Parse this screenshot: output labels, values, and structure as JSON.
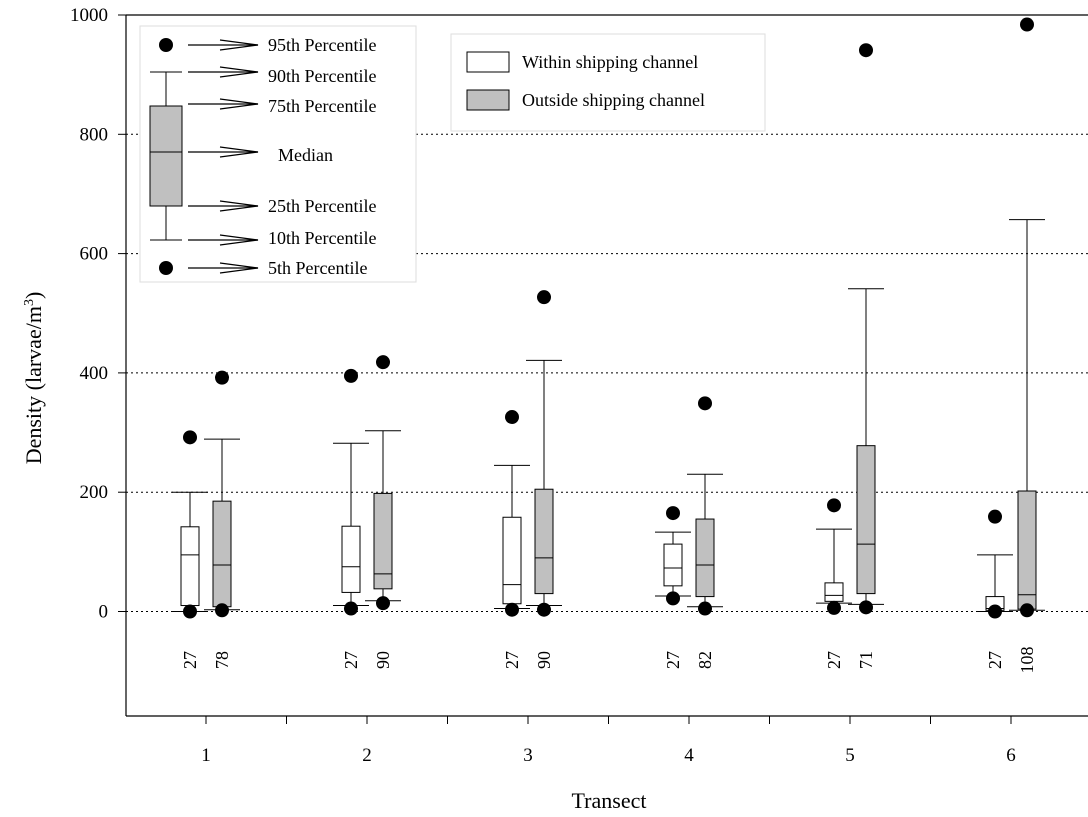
{
  "chart_data": {
    "type": "box",
    "xlabel": "Transect",
    "ylabel": "Density (larvae/m",
    "ylabel_sup": "3",
    "ylabel_end": ")",
    "ylim": [
      -185,
      1000
    ],
    "yticks": [
      0,
      200,
      400,
      600,
      800,
      1000
    ],
    "grid": "horizontal dotted at y ticks",
    "categories": [
      "1",
      "2",
      "3",
      "4",
      "5",
      "6"
    ],
    "series": [
      {
        "name": "Within shipping channel",
        "color": "#ffffff",
        "boxes": [
          {
            "p5": 0,
            "p10": 0,
            "p25": 10,
            "median": 95,
            "p75": 142,
            "p90": 200,
            "p95": 292,
            "n": "27"
          },
          {
            "p5": 5,
            "p10": 10,
            "p25": 32,
            "median": 75,
            "p75": 143,
            "p90": 282,
            "p95": 395,
            "n": "27"
          },
          {
            "p5": 3,
            "p10": 5,
            "p25": 13,
            "median": 45,
            "p75": 158,
            "p90": 245,
            "p95": 326,
            "n": "27"
          },
          {
            "p5": 22,
            "p10": 26,
            "p25": 43,
            "median": 73,
            "p75": 113,
            "p90": 133,
            "p95": 165,
            "n": "27"
          },
          {
            "p5": 6,
            "p10": 14,
            "p25": 17,
            "median": 27,
            "p75": 48,
            "p90": 138,
            "p95": 178,
            "n": "27"
          },
          {
            "p5": 0,
            "p10": 0,
            "p25": 2,
            "median": 5,
            "p75": 25,
            "p90": 95,
            "p95": 159,
            "n": "27"
          }
        ]
      },
      {
        "name": "Outside shipping channel",
        "color": "#c0c0c0",
        "boxes": [
          {
            "p5": 2,
            "p10": 3,
            "p25": 8,
            "median": 78,
            "p75": 185,
            "p90": 289,
            "p95": 392,
            "n": "78"
          },
          {
            "p5": 14,
            "p10": 18,
            "p25": 38,
            "median": 63,
            "p75": 198,
            "p90": 303,
            "p95": 418,
            "n": "90"
          },
          {
            "p5": 3,
            "p10": 10,
            "p25": 30,
            "median": 90,
            "p75": 205,
            "p90": 421,
            "p95": 527,
            "n": "90"
          },
          {
            "p5": 5,
            "p10": 8,
            "p25": 25,
            "median": 78,
            "p75": 155,
            "p90": 230,
            "p95": 349,
            "n": "82"
          },
          {
            "p5": 7,
            "p10": 12,
            "p25": 30,
            "median": 113,
            "p75": 278,
            "p90": 541,
            "p95": 941,
            "n": "71"
          },
          {
            "p5": 2,
            "p10": 2,
            "p25": 4,
            "median": 28,
            "p75": 202,
            "p90": 657,
            "p95": 984,
            "n": "108"
          }
        ]
      }
    ],
    "key_labels": {
      "p95": "95th Percentile",
      "p90": "90th Percentile",
      "p75": "75th Percentile",
      "median": "Median",
      "p25": "25th Percentile",
      "p10": "10th Percentile",
      "p5": "5th Percentile"
    },
    "key_color": "#c0c0c0"
  }
}
